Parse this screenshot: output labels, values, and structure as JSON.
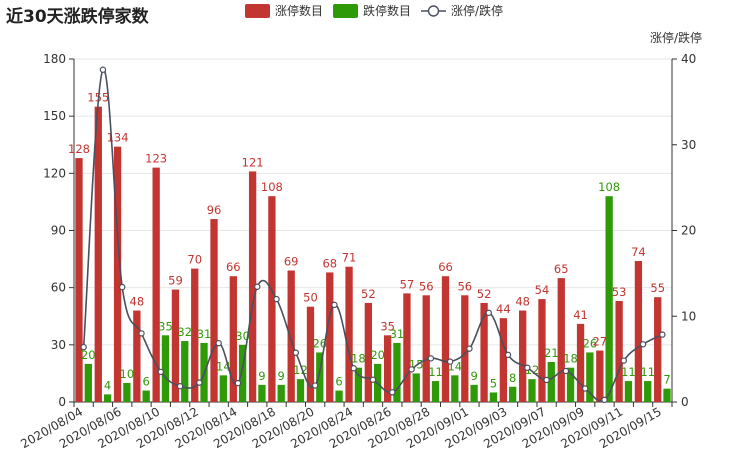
{
  "title": "近30天涨跌停家数",
  "chart_data": {
    "type": "bar",
    "title": "近30天涨跌停家数",
    "categories": [
      "2020/08/04",
      "2020/08/05",
      "2020/08/06",
      "2020/08/07",
      "2020/08/10",
      "2020/08/11",
      "2020/08/12",
      "2020/08/13",
      "2020/08/14",
      "2020/08/17",
      "2020/08/18",
      "2020/08/19",
      "2020/08/20",
      "2020/08/21",
      "2020/08/24",
      "2020/08/25",
      "2020/08/26",
      "2020/08/27",
      "2020/08/28",
      "2020/08/31",
      "2020/09/01",
      "2020/09/02",
      "2020/09/03",
      "2020/09/04",
      "2020/09/07",
      "2020/09/08",
      "2020/09/09",
      "2020/09/10",
      "2020/09/11",
      "2020/09/14",
      "2020/09/15"
    ],
    "tick_labels": [
      "2020/08/04",
      "2020/08/06",
      "2020/08/10",
      "2020/08/12",
      "2020/08/14",
      "2020/08/18",
      "2020/08/20",
      "2020/08/24",
      "2020/08/26",
      "2020/08/28",
      "2020/09/01",
      "2020/09/03",
      "2020/09/07",
      "2020/09/09",
      "2020/09/11",
      "2020/09/15"
    ],
    "series": [
      {
        "name": "涨停数目",
        "type": "bar",
        "axis": "left",
        "color": "#c23531",
        "values": [
          128,
          155,
          134,
          48,
          123,
          59,
          70,
          96,
          66,
          121,
          108,
          69,
          50,
          68,
          71,
          52,
          35,
          57,
          56,
          66,
          56,
          52,
          44,
          48,
          54,
          65,
          41,
          27,
          53,
          74,
          55
        ]
      },
      {
        "name": "跌停数目",
        "type": "bar",
        "axis": "left",
        "color": "#2f9a08",
        "values": [
          20,
          4,
          10,
          6,
          35,
          32,
          31,
          14,
          30,
          9,
          9,
          12,
          26,
          6,
          18,
          20,
          31,
          15,
          11,
          14,
          9,
          5,
          8,
          12,
          21,
          18,
          26,
          108,
          11,
          11,
          7
        ]
      },
      {
        "name": "涨停/跌停",
        "type": "line",
        "axis": "right",
        "color": "#4a4f5e",
        "values": [
          6.4,
          38.75,
          13.4,
          8.0,
          3.51,
          1.84,
          2.26,
          6.86,
          2.2,
          13.44,
          12.0,
          5.75,
          1.92,
          11.33,
          3.94,
          2.6,
          1.13,
          3.8,
          5.09,
          4.71,
          6.22,
          10.4,
          5.5,
          4.0,
          2.57,
          3.61,
          1.58,
          0.25,
          4.82,
          6.73,
          7.86
        ]
      }
    ],
    "y_left": {
      "min": 0,
      "max": 180,
      "ticks": [
        0,
        30,
        60,
        90,
        120,
        150,
        180
      ]
    },
    "y_right": {
      "name": "涨停/跌停",
      "min": 0,
      "max": 40,
      "ticks": [
        0,
        10,
        20,
        30,
        40
      ]
    },
    "legend": {
      "position": "top-center"
    }
  }
}
